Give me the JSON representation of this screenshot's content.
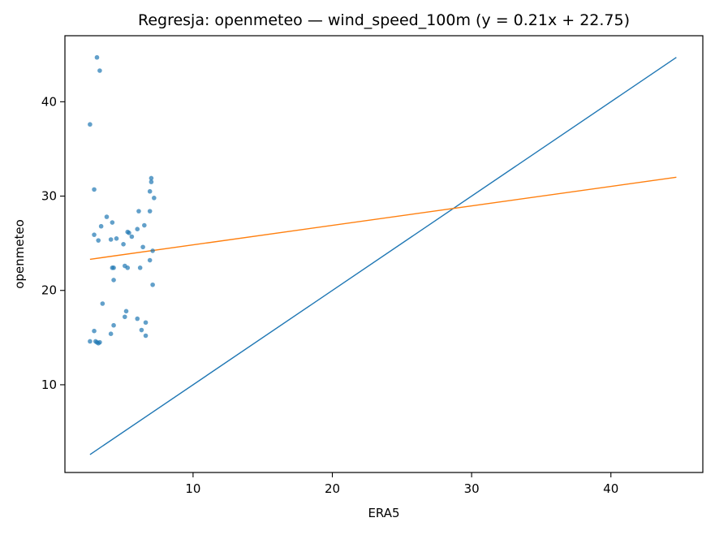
{
  "chart_data": {
    "type": "scatter",
    "title": "Regresja: openmeteo — wind_speed_100m (y = 0.21x + 22.75)",
    "xlabel": "ERA5",
    "ylabel": "openmeteo",
    "xlim": [
      0.8,
      46.6
    ],
    "ylim": [
      0.7,
      47.0
    ],
    "xticks": [
      10,
      20,
      30,
      40
    ],
    "yticks": [
      10,
      20,
      30,
      40
    ],
    "grid": false,
    "colors": {
      "points": "#1f77b4",
      "identity": "#1f77b4",
      "regression": "#ff7f0e"
    },
    "points": [
      {
        "x": 3.1,
        "y": 44.7
      },
      {
        "x": 3.3,
        "y": 43.3
      },
      {
        "x": 2.6,
        "y": 37.6
      },
      {
        "x": 2.9,
        "y": 30.7
      },
      {
        "x": 2.9,
        "y": 25.9
      },
      {
        "x": 3.2,
        "y": 25.3
      },
      {
        "x": 3.4,
        "y": 26.8
      },
      {
        "x": 3.8,
        "y": 27.8
      },
      {
        "x": 4.2,
        "y": 27.2
      },
      {
        "x": 4.1,
        "y": 25.4
      },
      {
        "x": 4.5,
        "y": 25.5
      },
      {
        "x": 5.0,
        "y": 24.9
      },
      {
        "x": 5.3,
        "y": 26.2
      },
      {
        "x": 5.4,
        "y": 26.1
      },
      {
        "x": 5.6,
        "y": 25.7
      },
      {
        "x": 6.0,
        "y": 26.5
      },
      {
        "x": 6.1,
        "y": 28.4
      },
      {
        "x": 6.5,
        "y": 26.9
      },
      {
        "x": 6.9,
        "y": 28.4
      },
      {
        "x": 6.9,
        "y": 30.5
      },
      {
        "x": 7.0,
        "y": 31.5
      },
      {
        "x": 7.0,
        "y": 31.9
      },
      {
        "x": 7.2,
        "y": 29.8
      },
      {
        "x": 6.4,
        "y": 24.6
      },
      {
        "x": 7.1,
        "y": 24.2
      },
      {
        "x": 6.9,
        "y": 23.2
      },
      {
        "x": 4.2,
        "y": 22.4
      },
      {
        "x": 4.3,
        "y": 22.4
      },
      {
        "x": 5.1,
        "y": 22.6
      },
      {
        "x": 5.3,
        "y": 22.4
      },
      {
        "x": 6.2,
        "y": 22.4
      },
      {
        "x": 4.3,
        "y": 21.1
      },
      {
        "x": 7.1,
        "y": 20.6
      },
      {
        "x": 3.5,
        "y": 18.6
      },
      {
        "x": 5.2,
        "y": 17.8
      },
      {
        "x": 5.1,
        "y": 17.2
      },
      {
        "x": 6.0,
        "y": 17.0
      },
      {
        "x": 6.6,
        "y": 16.6
      },
      {
        "x": 4.3,
        "y": 16.3
      },
      {
        "x": 6.3,
        "y": 15.8
      },
      {
        "x": 2.9,
        "y": 15.7
      },
      {
        "x": 4.1,
        "y": 15.4
      },
      {
        "x": 6.6,
        "y": 15.2
      },
      {
        "x": 2.6,
        "y": 14.6
      },
      {
        "x": 3.0,
        "y": 14.6
      },
      {
        "x": 3.1,
        "y": 14.5
      },
      {
        "x": 3.2,
        "y": 14.4
      },
      {
        "x": 3.3,
        "y": 14.5
      }
    ],
    "lines": [
      {
        "x": [
          2.6,
          44.7
        ],
        "y": [
          2.6,
          44.7
        ],
        "color": "#1f77b4"
      },
      {
        "x": [
          2.6,
          44.7
        ],
        "y": [
          23.3,
          32.0
        ],
        "color": "#ff7f0e"
      }
    ]
  }
}
